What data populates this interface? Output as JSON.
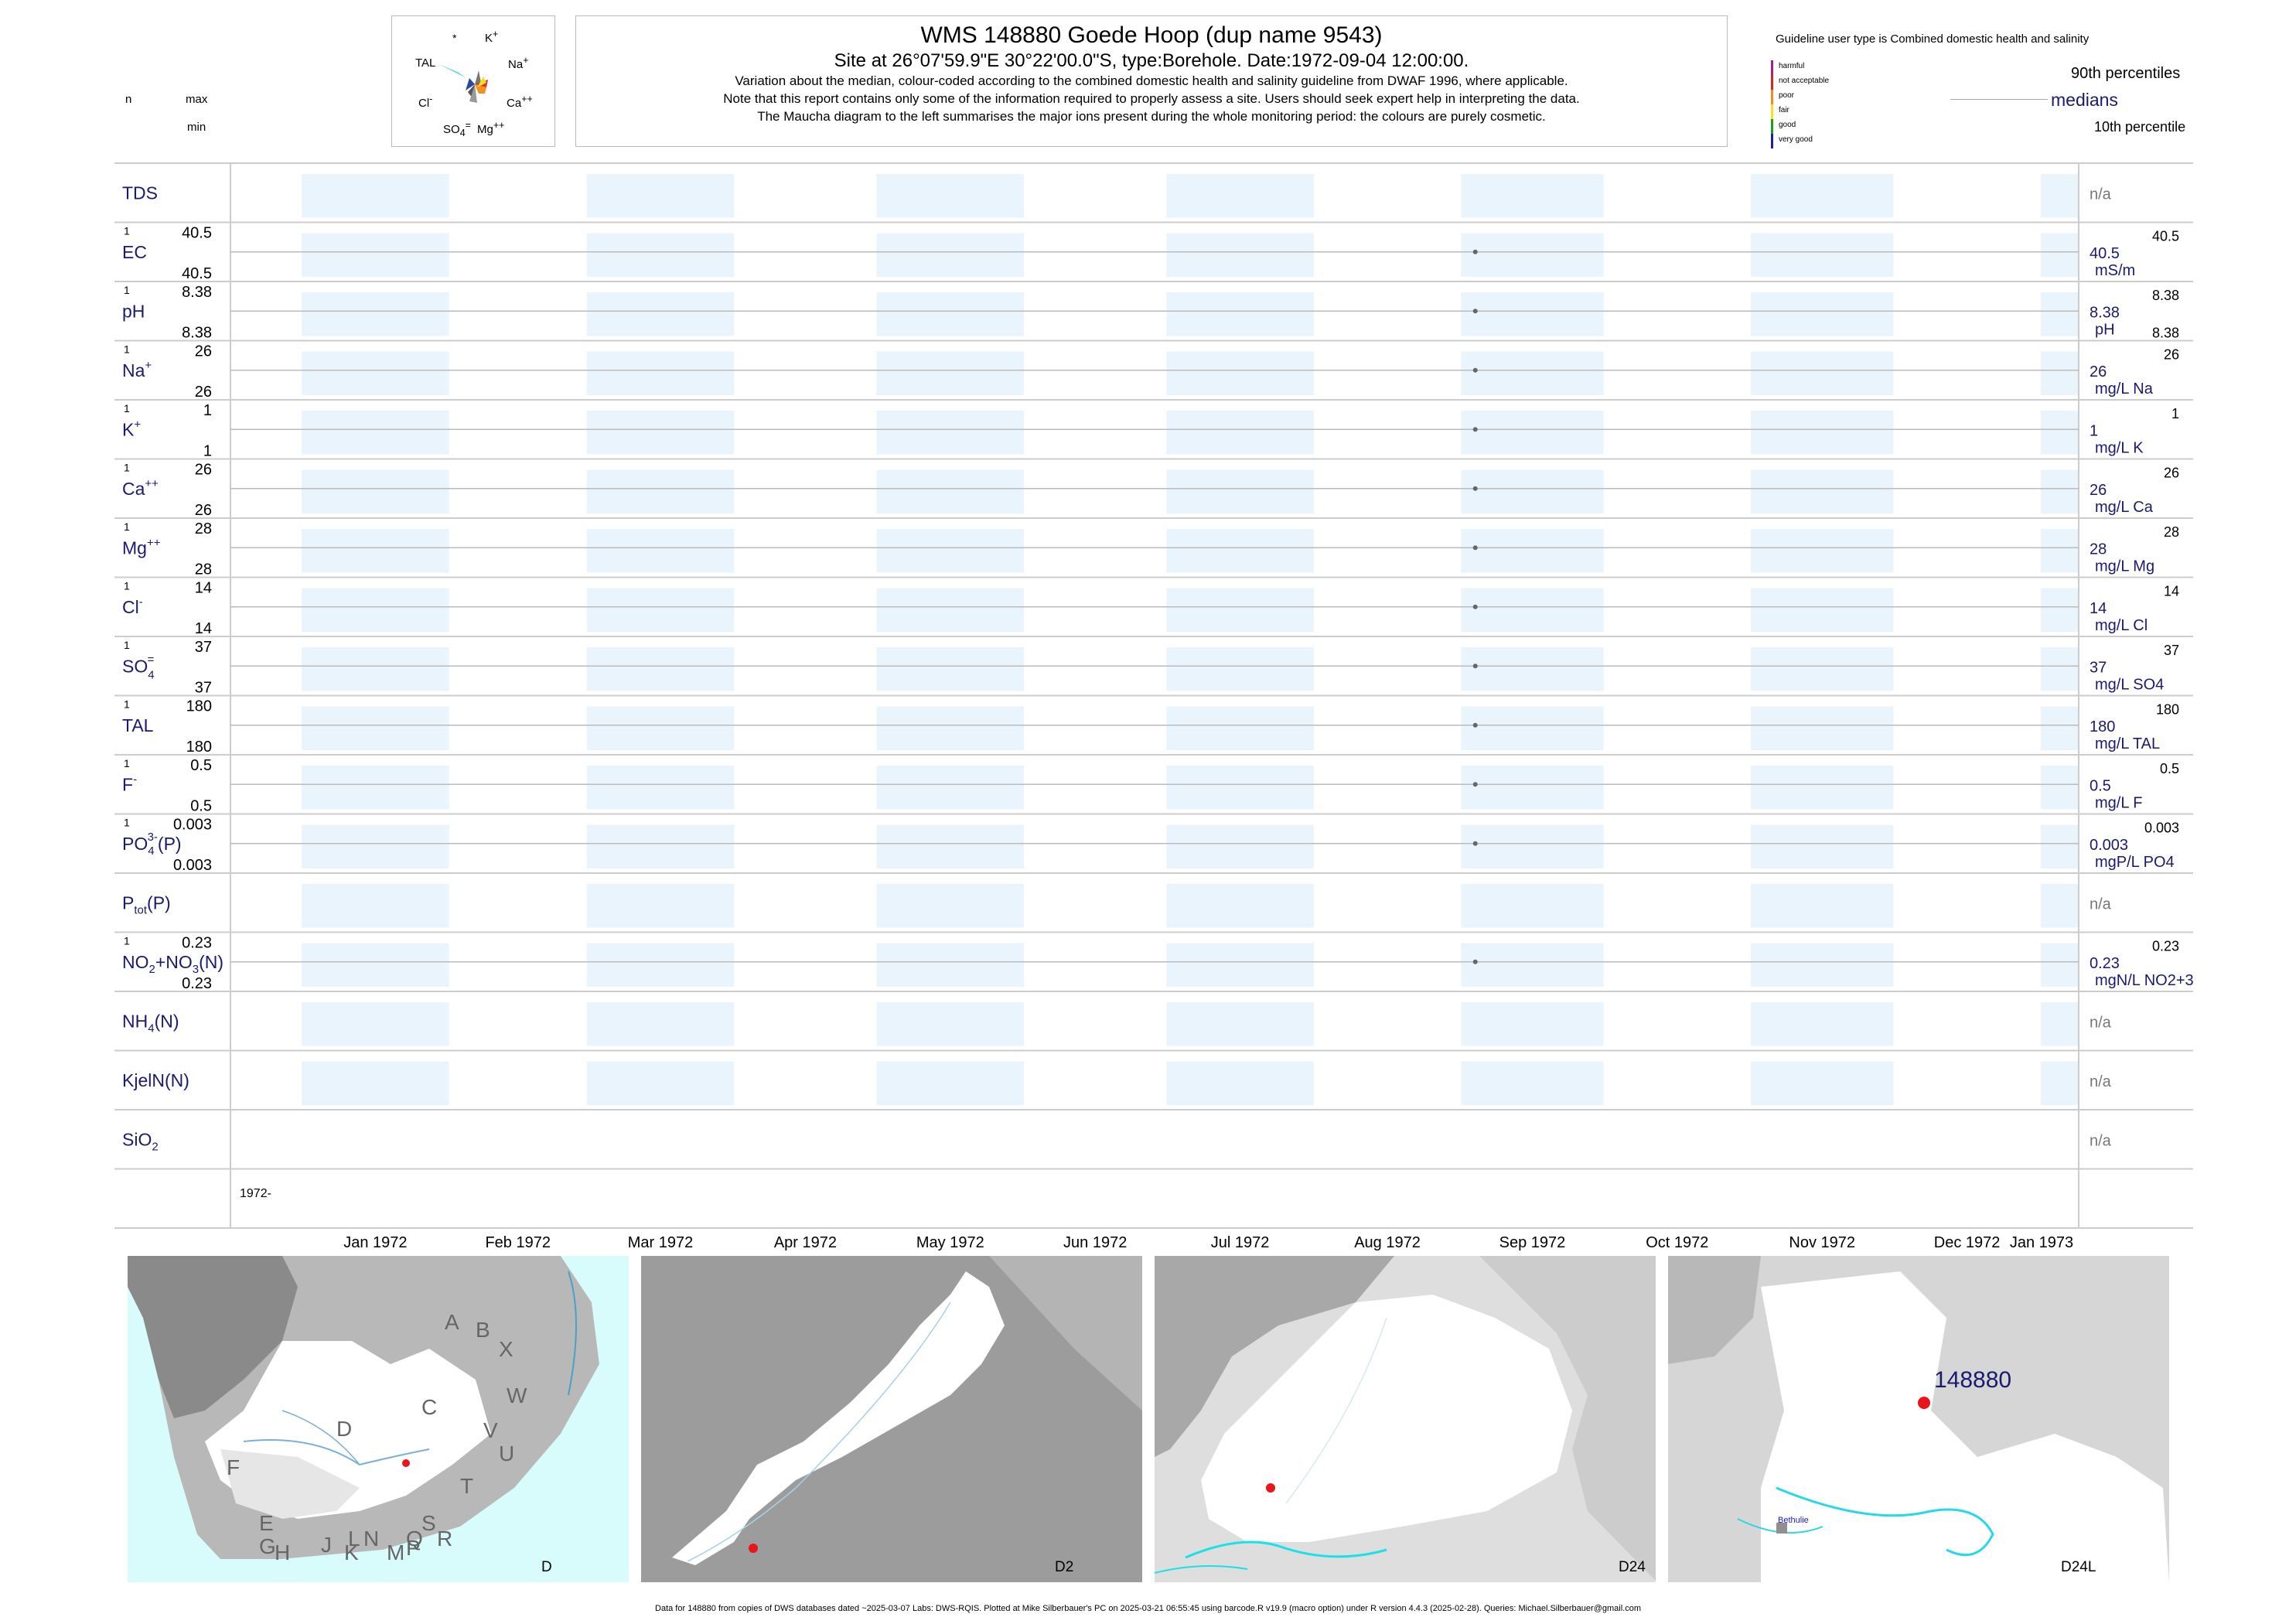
{
  "header": {
    "title": "WMS 148880  Goede Hoop (dup name 9543)",
    "site": "Site at 26°07'59.9\"E 30°22'00.0\"S, type:Borehole. Date:1972-09-04 12:00:00.",
    "note1": "Variation about the median,  colour-coded according to the combined domestic health and salinity guideline from DWAF 1996, where applicable.",
    "note2": "Note that this report contains only some of the information required to properly assess a site. Users should seek expert help in interpreting the data.",
    "note3": "The Maucha diagram to the left summarises the major ions present during the whole monitoring period: the colours are purely cosmetic."
  },
  "left_key": {
    "n": "n",
    "max": "max",
    "min": "min"
  },
  "maucha": {
    "star": "*",
    "k": "K",
    "na": "Na",
    "ca": "Ca",
    "mg": "Mg",
    "so4": "SO",
    "cl": "Cl",
    "tal": "TAL"
  },
  "legend": {
    "guideline": "Guideline user type is Combined domestic health and salinity",
    "classes": [
      "harmful",
      "not acceptable",
      "poor",
      "fair",
      "good",
      "very good"
    ],
    "class_colors": [
      "#aa1e8c",
      "#e0201e",
      "#f08c1e",
      "#f0e61e",
      "#1ea01e",
      "#1e1ea0"
    ],
    "p90": "90th percentiles",
    "medians": "medians",
    "p10": "10th percentile"
  },
  "chart_data": {
    "type": "scatter",
    "x_axis": {
      "months": [
        "Jan 1972",
        "Feb 1972",
        "Mar 1972",
        "Apr 1972",
        "May 1972",
        "Jun 1972",
        "Jul 1972",
        "Aug 1972",
        "Sep 1972",
        "Oct 1972",
        "Nov 1972",
        "Dec 1972",
        "Jan 1973"
      ],
      "year_label": "1972-",
      "range": [
        "1971-12-17",
        "1973-01-09"
      ]
    },
    "sample_date": "1972-09-04",
    "rows": [
      {
        "name": "TDS",
        "n": "",
        "max": "",
        "min": "",
        "value": "n/a",
        "unit": "",
        "rmax": "",
        "rmin": ""
      },
      {
        "name": "EC",
        "n": "1",
        "max": "40.5",
        "min": "40.5",
        "value": "40.5",
        "unit": "mS/m",
        "rmax": "40.5",
        "rmin": ""
      },
      {
        "name": "pH",
        "n": "1",
        "max": "8.38",
        "min": "8.38",
        "value": "8.38",
        "unit": "pH",
        "rmax": "8.38",
        "rmin": "8.38"
      },
      {
        "name": "Na",
        "n": "1",
        "max": "26",
        "min": "26",
        "value": "26",
        "unit": "mg/L Na",
        "rmax": "26",
        "rmin": ""
      },
      {
        "name": "K",
        "n": "1",
        "max": "1",
        "min": "1",
        "value": "1",
        "unit": "mg/L K",
        "rmax": "1",
        "rmin": ""
      },
      {
        "name": "Ca",
        "n": "1",
        "max": "26",
        "min": "26",
        "value": "26",
        "unit": "mg/L Ca",
        "rmax": "26",
        "rmin": ""
      },
      {
        "name": "Mg",
        "n": "1",
        "max": "28",
        "min": "28",
        "value": "28",
        "unit": "mg/L Mg",
        "rmax": "28",
        "rmin": ""
      },
      {
        "name": "Cl",
        "n": "1",
        "max": "14",
        "min": "14",
        "value": "14",
        "unit": "mg/L Cl",
        "rmax": "14",
        "rmin": ""
      },
      {
        "name": "SO",
        "n": "1",
        "max": "37",
        "min": "37",
        "value": "37",
        "unit": "mg/L SO4",
        "rmax": "37",
        "rmin": ""
      },
      {
        "name": "TAL",
        "n": "1",
        "max": "180",
        "min": "180",
        "value": "180",
        "unit": "mg/L TAL",
        "rmax": "180",
        "rmin": ""
      },
      {
        "name": "F",
        "n": "1",
        "max": "0.5",
        "min": "0.5",
        "value": "0.5",
        "unit": "mg/L F",
        "rmax": "0.5",
        "rmin": ""
      },
      {
        "name": "PO",
        "n": "1",
        "max": "0.003",
        "min": "0.003",
        "value": "0.003",
        "unit": "mgP/L PO4",
        "rmax": "0.003",
        "rmin": ""
      },
      {
        "name": "P",
        "n": "",
        "max": "",
        "min": "",
        "value": "n/a",
        "unit": "",
        "rmax": "",
        "rmin": ""
      },
      {
        "name": "NO",
        "n": "1",
        "max": "0.23",
        "min": "0.23",
        "value": "0.23",
        "unit": "mgN/L NO2+3",
        "rmax": "0.23",
        "rmin": ""
      },
      {
        "name": "NH",
        "n": "",
        "max": "",
        "min": "",
        "value": "n/a",
        "unit": "",
        "rmax": "",
        "rmin": ""
      },
      {
        "name": "KjelN(N)",
        "n": "",
        "max": "",
        "min": "",
        "value": "n/a",
        "unit": "",
        "rmax": "",
        "rmin": ""
      },
      {
        "name": "SiO",
        "n": "",
        "max": "",
        "min": "",
        "value": "n/a",
        "unit": "",
        "rmax": "",
        "rmin": ""
      }
    ]
  },
  "maps": {
    "m1": "D",
    "m2": "D2",
    "m3": "D24",
    "m4": "D24L",
    "site_label": "148880",
    "town": "Bethulie",
    "regions": [
      "A",
      "B",
      "X",
      "W",
      "C",
      "D",
      "V",
      "U",
      "T",
      "F",
      "E",
      "S",
      "R",
      "Q",
      "P",
      "M",
      "N",
      "L",
      "K",
      "J",
      "H",
      "G"
    ]
  },
  "footer": "Data for 148880 from copies of DWS databases dated ~2025-03-07 Labs: DWS-RQIS. Plotted at Mike Silberbauer's PC on 2025-03-21 06:55:45 using barcode.R v19.9 (macro option) under R version 4.4.3 (2025-02-28). Queries: Michael.Silberbauer@gmail.com"
}
